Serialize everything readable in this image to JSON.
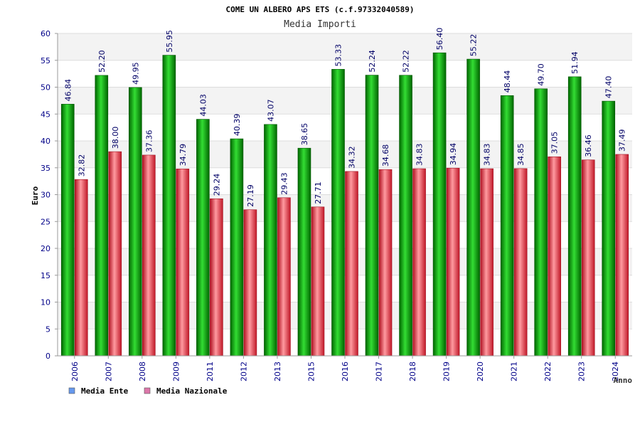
{
  "chart_data": {
    "type": "bar",
    "title": "COME UN ALBERO APS ETS (c.f.97332040589)",
    "subtitle": "Media Importi",
    "xlabel": "Anno",
    "ylabel": "Euro",
    "ylim": [
      0,
      60
    ],
    "yticks": [
      0,
      5,
      10,
      15,
      20,
      25,
      30,
      35,
      40,
      45,
      50,
      55,
      60
    ],
    "categories": [
      "2006",
      "2007",
      "2008",
      "2009",
      "2011",
      "2012",
      "2013",
      "2015",
      "2016",
      "2017",
      "2018",
      "2019",
      "2020",
      "2021",
      "2022",
      "2023",
      "2024"
    ],
    "series": [
      {
        "name": "Media Ente",
        "color": "#00aa00",
        "legend_color": "#6699ee",
        "values": [
          46.84,
          52.2,
          49.95,
          55.95,
          44.03,
          40.39,
          43.07,
          38.65,
          53.33,
          52.24,
          52.22,
          56.4,
          55.22,
          48.44,
          49.7,
          51.94,
          47.4
        ]
      },
      {
        "name": "Media Nazionale",
        "color": "#e83040",
        "legend_color": "#dd77aa",
        "values": [
          32.82,
          38.0,
          37.36,
          34.79,
          29.24,
          27.19,
          29.43,
          27.71,
          34.32,
          34.68,
          34.83,
          34.94,
          34.83,
          34.85,
          37.05,
          36.46,
          37.49
        ]
      }
    ],
    "grid": true,
    "legend_position": "bottom-left"
  }
}
